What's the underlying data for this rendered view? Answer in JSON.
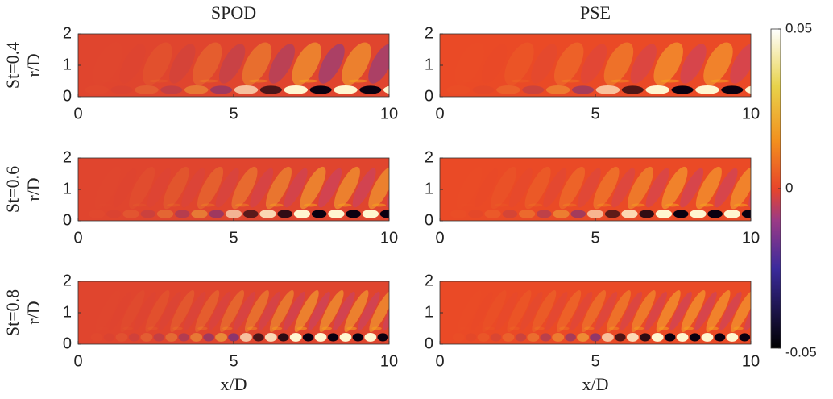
{
  "chart_data": [
    {
      "type": "heatmap",
      "title": "SPOD",
      "row_label": "St=0.4",
      "ylabel": "r/D",
      "xlim": [
        0,
        10
      ],
      "ylim": [
        0,
        2
      ],
      "xticks": [
        0,
        5,
        10
      ],
      "yticks": [
        0,
        1,
        2
      ]
    },
    {
      "type": "heatmap",
      "title": "PSE",
      "xlim": [
        0,
        10
      ],
      "ylim": [
        0,
        2
      ],
      "xticks": [
        0,
        5,
        10
      ],
      "yticks": [
        0,
        1,
        2
      ]
    },
    {
      "type": "heatmap",
      "row_label": "St=0.6",
      "ylabel": "r/D",
      "xlim": [
        0,
        10
      ],
      "ylim": [
        0,
        2
      ],
      "xticks": [
        0,
        5,
        10
      ],
      "yticks": [
        0,
        1,
        2
      ]
    },
    {
      "type": "heatmap",
      "xlim": [
        0,
        10
      ],
      "ylim": [
        0,
        2
      ],
      "xticks": [
        0,
        5,
        10
      ],
      "yticks": [
        0,
        1,
        2
      ]
    },
    {
      "type": "heatmap",
      "row_label": "St=0.8",
      "ylabel": "r/D",
      "xlabel": "x/D",
      "xlim": [
        0,
        10
      ],
      "ylim": [
        0,
        2
      ],
      "xticks": [
        0,
        5,
        10
      ],
      "yticks": [
        0,
        1,
        2
      ]
    },
    {
      "type": "heatmap",
      "xlabel": "x/D",
      "xlim": [
        0,
        10
      ],
      "ylim": [
        0,
        2
      ],
      "xticks": [
        0,
        5,
        10
      ],
      "yticks": [
        0,
        1,
        2
      ]
    }
  ],
  "colorbar": {
    "clim": [
      -0.05,
      0.05
    ],
    "ticks": [
      -0.05,
      0,
      0.05
    ]
  }
}
